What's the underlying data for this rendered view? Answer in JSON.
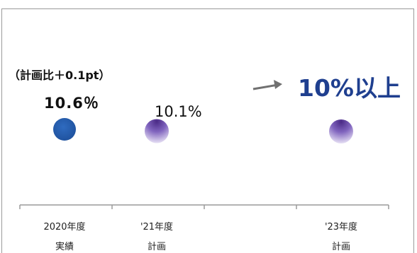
{
  "chart_data": {
    "type": "scatter",
    "categories": [
      {
        "line1": "2020年度",
        "line2": "実績"
      },
      {
        "line1": "'21年度",
        "line2": "計画"
      },
      {
        "line1": "",
        "line2": ""
      },
      {
        "line1": "'23年度",
        "line2": "計画"
      }
    ],
    "points": [
      {
        "category_index": 0,
        "value": 10.6,
        "value_label": "10.6％",
        "note": "（計画比＋0.1pt）",
        "color": "#2159a8"
      },
      {
        "category_index": 1,
        "value": 10.1,
        "value_label": "10.1%",
        "color": "#6a3fa0"
      },
      {
        "category_index": 3,
        "value": 10.0,
        "value_label": "",
        "color": "#6a3fa0"
      }
    ],
    "target": {
      "label": "10%以上",
      "color": "#1f3f8f"
    },
    "colors": {
      "actual": "#2159a8",
      "plan": "#6a3fa0",
      "axis": "#9a9a9a",
      "arrow": "#707070"
    }
  }
}
